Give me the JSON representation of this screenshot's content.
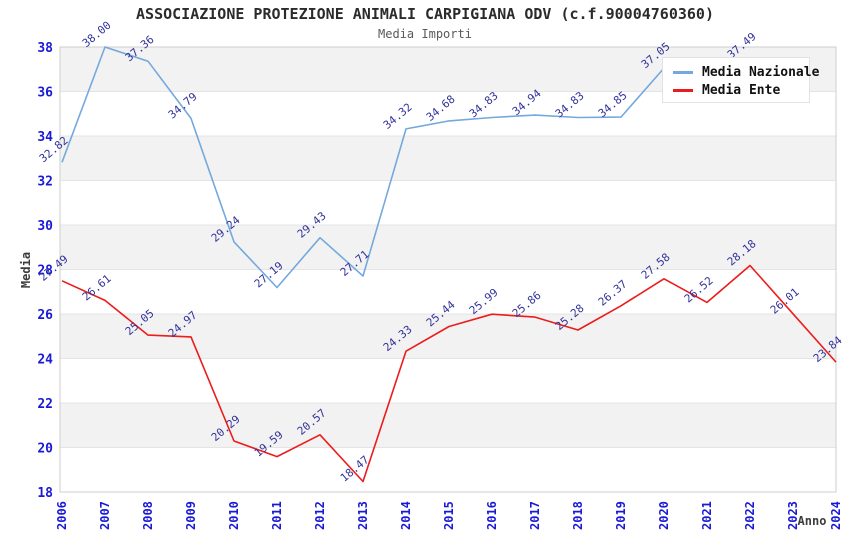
{
  "title": "ASSOCIAZIONE PROTEZIONE ANIMALI CARPIGIANA ODV (c.f.90004760360)",
  "subtitle": "Media Importi",
  "legend": {
    "position": "top-right",
    "items": [
      {
        "label": "Media Nazionale",
        "color": "#74a9dc"
      },
      {
        "label": "Media Ente",
        "color": "#ec1c1c"
      }
    ]
  },
  "chart_data": {
    "type": "line",
    "title": "ASSOCIAZIONE PROTEZIONE ANIMALI CARPIGIANA ODV (c.f.90004760360)",
    "subtitle": "Media Importi",
    "xlabel": "Anno",
    "ylabel": "Media",
    "x": [
      2006,
      2007,
      2008,
      2009,
      2010,
      2011,
      2012,
      2013,
      2014,
      2015,
      2016,
      2017,
      2018,
      2019,
      2020,
      2021,
      2022,
      2023,
      2024
    ],
    "ylim": [
      18,
      38
    ],
    "ytick_step": 2,
    "grid": "horizontal",
    "banding": "alternating light-gray bands every 2 units (36-38, 32-34, 28-30, 24-26, 20-22)",
    "legend_position": "top-right inside plot, overlapping 2020-2022 region of Media Nazionale line",
    "series": [
      {
        "name": "Media Nazionale",
        "color": "#74a9dc",
        "values": [
          32.82,
          38.0,
          37.36,
          34.79,
          29.24,
          27.19,
          29.43,
          27.71,
          34.32,
          34.68,
          34.83,
          34.94,
          34.83,
          34.85,
          37.05,
          null,
          37.49,
          null,
          null
        ]
      },
      {
        "name": "Media Ente",
        "color": "#ec1c1c",
        "values": [
          27.49,
          26.61,
          25.05,
          24.97,
          20.29,
          19.59,
          20.57,
          18.47,
          24.33,
          25.44,
          25.99,
          25.86,
          25.28,
          26.37,
          27.58,
          26.52,
          28.18,
          26.01,
          23.84
        ]
      }
    ],
    "colors": {
      "data_label": "#32329b",
      "tick_label": "#1a1ad6",
      "axis_title": "#3d3d3d",
      "grid_line": "#e4e4e4",
      "band_fill": "#f2f2f2",
      "plot_border": "#cfcfcf"
    }
  }
}
